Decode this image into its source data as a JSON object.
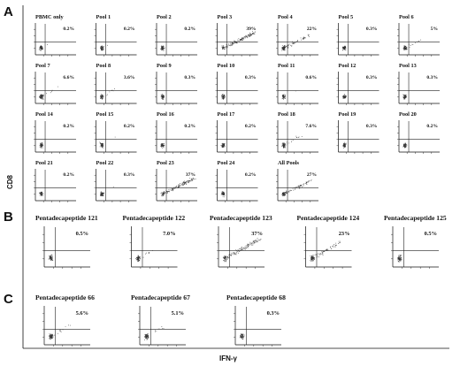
{
  "figure": {
    "panels": [
      {
        "letter": "A",
        "plots": [
          {
            "label": "PBMC only",
            "percent": "0.2%"
          },
          {
            "label": "Pool 1",
            "percent": "0.2%"
          },
          {
            "label": "Pool 2",
            "percent": "0.2%"
          },
          {
            "label": "Pool 3",
            "percent": "39%"
          },
          {
            "label": "Pool 4",
            "percent": "22%"
          },
          {
            "label": "Pool 5",
            "percent": "0.3%"
          },
          {
            "label": "Pool 6",
            "percent": "5%"
          },
          {
            "label": "Pool 7",
            "percent": "6.6%"
          },
          {
            "label": "Pool 8",
            "percent": "3.6%"
          },
          {
            "label": "Pool 9",
            "percent": "0.3%"
          },
          {
            "label": "Pool 10",
            "percent": "0.3%"
          },
          {
            "label": "Pool 11",
            "percent": "0.6%"
          },
          {
            "label": "Pool 12",
            "percent": "0.3%"
          },
          {
            "label": "Pool 13",
            "percent": "0.3%"
          },
          {
            "label": "Pool 14",
            "percent": "0.2%"
          },
          {
            "label": "Pool 15",
            "percent": "0.2%"
          },
          {
            "label": "Pool 16",
            "percent": "0.2%"
          },
          {
            "label": "Pool 17",
            "percent": "0.2%"
          },
          {
            "label": "Pool 18",
            "percent": "7.6%"
          },
          {
            "label": "Pool 19",
            "percent": "0.3%"
          },
          {
            "label": "Pool 20",
            "percent": "0.2%"
          },
          {
            "label": "Pool 21",
            "percent": "0.2%"
          },
          {
            "label": "Pool 22",
            "percent": "0.3%"
          },
          {
            "label": "Pool 23",
            "percent": "37%"
          },
          {
            "label": "Pool 24",
            "percent": "0.2%"
          },
          {
            "label": "All Pools",
            "percent": "27%"
          }
        ]
      },
      {
        "letter": "B",
        "plots": [
          {
            "label": "Pentadecapeptide 121",
            "percent": "0.5%"
          },
          {
            "label": "Pentadecapeptide 122",
            "percent": "7.0%"
          },
          {
            "label": "Pentadecapeptide 123",
            "percent": "37%"
          },
          {
            "label": "Pentadecapeptide 124",
            "percent": "23%"
          },
          {
            "label": "Pentadecapeptide 125",
            "percent": "0.5%"
          }
        ]
      },
      {
        "letter": "C",
        "plots": [
          {
            "label": "Pentadecapeptide 66",
            "percent": "5.6%"
          },
          {
            "label": "Pentadecapeptide 67",
            "percent": "5.1%"
          },
          {
            "label": "Pentadecapeptide 68",
            "percent": "0.3%"
          }
        ]
      }
    ],
    "y_axis_label": "CD8",
    "x_axis_label": "IFN-γ"
  },
  "colors": {
    "ink": "#111111",
    "dots": "#333333",
    "background": "#ffffff"
  }
}
